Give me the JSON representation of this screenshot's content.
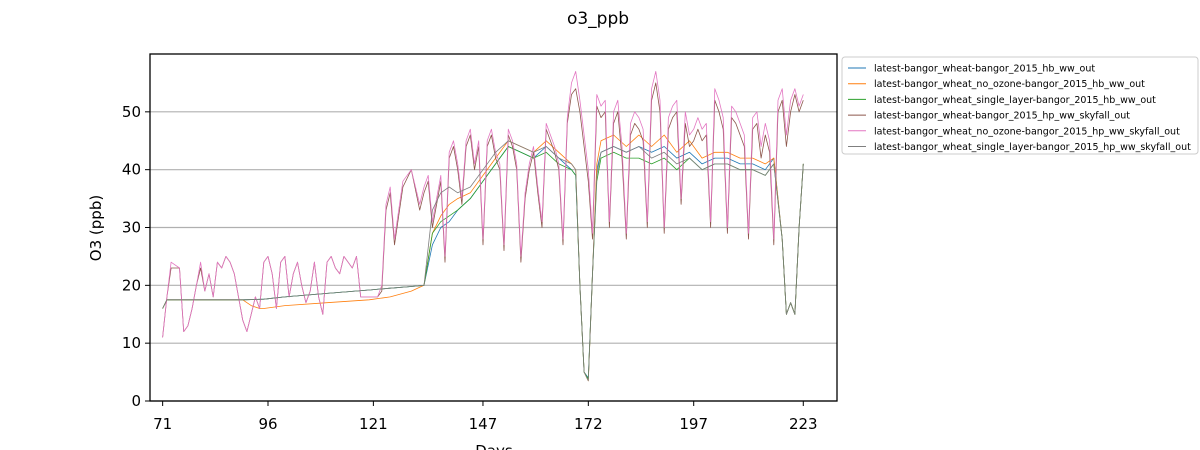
{
  "chart_data": {
    "type": "line",
    "title": "o3_ppb",
    "xlabel": "Days",
    "ylabel": "O3 (ppb)",
    "xlim": [
      68,
      231
    ],
    "ylim": [
      0,
      60
    ],
    "x_ticks": [
      71,
      96,
      121,
      147,
      172,
      197,
      223
    ],
    "y_ticks": [
      0,
      10,
      20,
      30,
      40,
      50
    ],
    "grid": "horizontal",
    "legend_position": "outside-right",
    "series": [
      {
        "name": "latest-bangor_wheat-bangor_2015_hb_ww_out",
        "color": "#1f77b4",
        "x": [
          71,
          72,
          80,
          90,
          95,
          100,
          110,
          120,
          125,
          130,
          133,
          135,
          137,
          139,
          141,
          144,
          147,
          150,
          153,
          156,
          159,
          162,
          165,
          168,
          169,
          170,
          171,
          172,
          173,
          174,
          175,
          178,
          181,
          184,
          187,
          190,
          193,
          196,
          199,
          202,
          205,
          208,
          211,
          214,
          216,
          218,
          219,
          220,
          221,
          222,
          223
        ],
        "y": [
          16,
          17.5,
          17.5,
          17.5,
          17.6,
          18,
          18.6,
          19.2,
          19.5,
          19.8,
          20,
          27,
          30,
          31,
          33,
          35,
          38,
          41,
          44,
          43,
          42,
          44,
          42,
          40,
          39,
          20,
          5,
          4,
          22,
          40,
          43,
          44,
          43,
          44,
          43,
          44,
          42,
          43,
          41,
          42,
          42,
          41,
          41,
          40,
          42,
          28,
          15,
          17,
          15,
          30,
          41
        ]
      },
      {
        "name": "latest-bangor_wheat_no_ozone-bangor_2015_hb_ww_out",
        "color": "#ff7f0e",
        "x": [
          71,
          72,
          80,
          90,
          92,
          94,
          95,
          100,
          110,
          120,
          125,
          130,
          133,
          135,
          137,
          139,
          141,
          144,
          147,
          150,
          153,
          156,
          159,
          162,
          165,
          168,
          169,
          170,
          171,
          172,
          173,
          174,
          175,
          178,
          181,
          184,
          187,
          190,
          193,
          196,
          199,
          202,
          205,
          208,
          211,
          214,
          216,
          218,
          219,
          220,
          221,
          222,
          223
        ],
        "y": [
          16,
          17.5,
          17.5,
          17.5,
          16.5,
          16,
          16,
          16.5,
          17,
          17.5,
          18,
          19,
          20,
          29,
          32,
          34,
          35,
          36,
          39,
          42,
          45,
          44,
          43,
          45,
          43,
          41,
          40,
          20,
          5,
          3.5,
          22,
          41,
          45,
          46,
          44,
          46,
          44,
          46,
          43,
          45,
          42,
          43,
          43,
          42,
          42,
          41,
          42,
          28,
          15,
          17,
          15,
          30,
          41
        ]
      },
      {
        "name": "latest-bangor_wheat_single_layer-bangor_2015_hb_ww_out",
        "color": "#2ca02c",
        "x": [
          71,
          72,
          80,
          90,
          95,
          100,
          110,
          120,
          125,
          130,
          133,
          135,
          137,
          139,
          141,
          144,
          147,
          150,
          153,
          156,
          159,
          162,
          165,
          168,
          169,
          170,
          171,
          172,
          173,
          174,
          175,
          178,
          181,
          184,
          187,
          190,
          193,
          196,
          199,
          202,
          205,
          208,
          211,
          214,
          216,
          218,
          219,
          220,
          221,
          222,
          223
        ],
        "y": [
          16,
          17.5,
          17.5,
          17.5,
          17.6,
          18,
          18.6,
          19.2,
          19.5,
          19.8,
          20,
          29,
          31,
          32,
          33,
          35,
          38,
          41,
          44,
          43,
          42,
          43,
          41,
          40,
          39,
          20,
          5,
          3.8,
          22,
          38,
          42,
          43,
          42,
          42,
          41,
          42,
          40,
          42,
          40,
          41,
          41,
          40,
          40,
          39,
          41,
          28,
          15,
          17,
          15,
          30,
          41
        ]
      },
      {
        "name": "latest-bangor_wheat-bangor_2015_hp_ww_skyfall_out",
        "color": "#8c564b",
        "x": [
          71,
          72,
          73,
          75,
          76,
          77,
          78,
          79,
          80,
          81,
          82,
          83,
          84,
          85,
          86,
          87,
          88,
          89,
          90,
          91,
          92,
          93,
          94,
          95,
          96,
          97,
          98,
          99,
          100,
          101,
          102,
          103,
          104,
          105,
          106,
          107,
          108,
          109,
          110,
          111,
          112,
          113,
          114,
          115,
          116,
          117,
          118,
          119,
          120,
          121,
          122,
          123,
          124,
          125,
          126,
          128,
          130,
          132,
          133,
          134,
          135,
          136,
          137,
          138,
          139,
          140,
          141,
          142,
          143,
          144,
          145,
          146,
          147,
          148,
          149,
          150,
          151,
          152,
          153,
          154,
          155,
          156,
          157,
          158,
          159,
          160,
          161,
          162,
          163,
          164,
          165,
          166,
          167,
          168,
          169,
          170,
          171,
          172,
          173,
          174,
          175,
          176,
          177,
          178,
          179,
          180,
          181,
          182,
          183,
          184,
          185,
          186,
          187,
          188,
          189,
          190,
          191,
          192,
          193,
          194,
          195,
          196,
          197,
          198,
          199,
          200,
          201,
          202,
          203,
          204,
          205,
          206,
          207,
          208,
          209,
          210,
          211,
          212,
          213,
          214,
          215,
          216,
          217,
          218,
          219,
          220,
          221,
          222,
          223
        ],
        "y": [
          11,
          18,
          23,
          23,
          12,
          13,
          16,
          20,
          23,
          19,
          22,
          18,
          24,
          23,
          25,
          24,
          22,
          18,
          14,
          12,
          15,
          18,
          16,
          24,
          25,
          22,
          16,
          24,
          25,
          18,
          22,
          24,
          20,
          17,
          19,
          24,
          18,
          15,
          24,
          25,
          23,
          22,
          25,
          24,
          23,
          25,
          18,
          18,
          18,
          18,
          18,
          19,
          33,
          36,
          27,
          37,
          40,
          33,
          36,
          38,
          30,
          34,
          38,
          24,
          42,
          44,
          40,
          34,
          44,
          46,
          40,
          44,
          27,
          44,
          46,
          42,
          40,
          26,
          46,
          44,
          40,
          24,
          35,
          40,
          43,
          36,
          30,
          47,
          45,
          43,
          40,
          27,
          48,
          53,
          54,
          50,
          44,
          38,
          28,
          51,
          49,
          50,
          30,
          48,
          50,
          42,
          28,
          46,
          48,
          47,
          45,
          30,
          52,
          55,
          50,
          29,
          47,
          49,
          50,
          34,
          48,
          44,
          45,
          47,
          45,
          46,
          30,
          52,
          50,
          47,
          29,
          49,
          48,
          46,
          44,
          28,
          47,
          48,
          42,
          46,
          43,
          27,
          50,
          52,
          44,
          50,
          53,
          50,
          52
        ]
      },
      {
        "name": "latest-bangor_wheat_no_ozone-bangor_2015_hp_ww_skyfall_out",
        "color": "#e377c2",
        "x": [
          71,
          72,
          73,
          75,
          76,
          77,
          78,
          79,
          80,
          81,
          82,
          83,
          84,
          85,
          86,
          87,
          88,
          89,
          90,
          91,
          92,
          93,
          94,
          95,
          96,
          97,
          98,
          99,
          100,
          101,
          102,
          103,
          104,
          105,
          106,
          107,
          108,
          109,
          110,
          111,
          112,
          113,
          114,
          115,
          116,
          117,
          118,
          119,
          120,
          121,
          122,
          123,
          124,
          125,
          126,
          128,
          130,
          132,
          133,
          134,
          135,
          136,
          137,
          138,
          139,
          140,
          141,
          142,
          143,
          144,
          145,
          146,
          147,
          148,
          149,
          150,
          151,
          152,
          153,
          154,
          155,
          156,
          157,
          158,
          159,
          160,
          161,
          162,
          163,
          164,
          165,
          166,
          167,
          168,
          169,
          170,
          171,
          172,
          173,
          174,
          175,
          176,
          177,
          178,
          179,
          180,
          181,
          182,
          183,
          184,
          185,
          186,
          187,
          188,
          189,
          190,
          191,
          192,
          193,
          194,
          195,
          196,
          197,
          198,
          199,
          200,
          201,
          202,
          203,
          204,
          205,
          206,
          207,
          208,
          209,
          210,
          211,
          212,
          213,
          214,
          215,
          216,
          217,
          218,
          219,
          220,
          221,
          222,
          223
        ],
        "y": [
          11,
          18,
          24,
          23,
          12,
          13,
          16,
          20,
          24,
          19,
          22,
          18,
          24,
          23,
          25,
          24,
          22,
          18,
          14,
          12,
          15,
          18,
          16,
          24,
          25,
          22,
          16,
          24,
          25,
          18,
          22,
          24,
          20,
          17,
          19,
          24,
          18,
          15,
          24,
          25,
          23,
          22,
          25,
          24,
          23,
          25,
          18,
          18,
          18,
          18,
          18,
          20,
          34,
          37,
          28,
          38,
          40,
          34,
          37,
          39,
          31,
          35,
          39,
          25,
          43,
          45,
          41,
          35,
          45,
          47,
          41,
          45,
          28,
          45,
          47,
          43,
          41,
          27,
          47,
          45,
          41,
          25,
          36,
          41,
          44,
          37,
          31,
          48,
          46,
          44,
          41,
          28,
          49,
          55,
          57,
          52,
          46,
          40,
          29,
          53,
          51,
          52,
          31,
          50,
          52,
          44,
          29,
          48,
          50,
          49,
          47,
          31,
          54,
          57,
          52,
          30,
          49,
          51,
          52,
          35,
          50,
          46,
          47,
          49,
          47,
          48,
          31,
          54,
          52,
          49,
          30,
          51,
          50,
          48,
          46,
          29,
          49,
          50,
          44,
          48,
          45,
          28,
          52,
          54,
          46,
          52,
          54,
          51,
          53
        ]
      },
      {
        "name": "latest-bangor_wheat_single_layer-bangor_2015_hp_ww_skyfall_out",
        "color": "#7f7f7f",
        "x": [
          71,
          72,
          80,
          90,
          95,
          100,
          110,
          120,
          125,
          130,
          133,
          135,
          137,
          139,
          141,
          144,
          147,
          150,
          153,
          156,
          159,
          162,
          165,
          168,
          169,
          170,
          171,
          172,
          173,
          174,
          175,
          178,
          181,
          184,
          187,
          190,
          193,
          196,
          199,
          202,
          205,
          208,
          211,
          214,
          216,
          218,
          219,
          220,
          221,
          222,
          223
        ],
        "y": [
          16,
          17.5,
          17.5,
          17.5,
          17.6,
          18,
          18.6,
          19.2,
          19.5,
          19.8,
          20,
          33,
          36,
          37,
          36,
          37,
          40,
          43,
          45,
          44,
          43,
          44,
          42,
          41,
          40,
          20,
          5,
          3.5,
          22,
          39,
          43,
          44,
          43,
          44,
          42,
          43,
          41,
          42,
          40,
          41,
          41,
          40,
          40,
          39,
          41,
          28,
          15,
          17,
          15,
          30,
          41
        ]
      }
    ]
  }
}
